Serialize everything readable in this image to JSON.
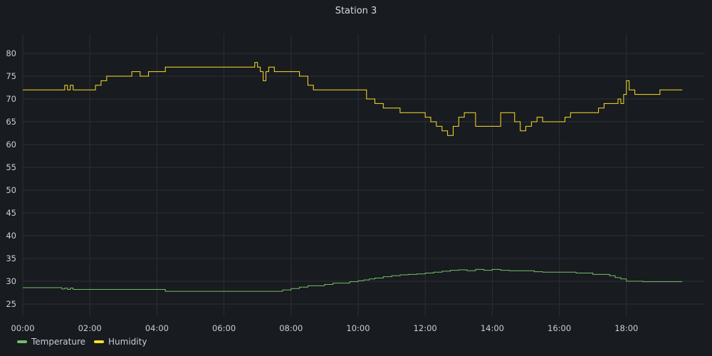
{
  "panel": {
    "title": "Station 3"
  },
  "chart_data": {
    "type": "line",
    "title": "Station 3",
    "xlabel": "",
    "ylabel": "",
    "x_ticks": [
      "00:00",
      "02:00",
      "04:00",
      "06:00",
      "08:00",
      "10:00",
      "12:00",
      "14:00",
      "16:00",
      "18:00"
    ],
    "xlim": [
      "00:00",
      "19:40"
    ],
    "ylim": [
      22,
      82
    ],
    "y_ticks": [
      25,
      30,
      35,
      40,
      45,
      50,
      55,
      60,
      65,
      70,
      75,
      80
    ],
    "grid": true,
    "legend": "bottom-left",
    "series": [
      {
        "name": "Temperature",
        "color": "#73bf69",
        "x": [
          "00:00",
          "00:30",
          "01:00",
          "01:10",
          "01:15",
          "01:20",
          "01:25",
          "01:30",
          "01:40",
          "02:00",
          "03:00",
          "04:00",
          "04:15",
          "05:00",
          "06:00",
          "07:00",
          "07:30",
          "07:45",
          "08:00",
          "08:15",
          "08:30",
          "08:45",
          "09:00",
          "09:15",
          "09:30",
          "09:45",
          "10:00",
          "10:10",
          "10:20",
          "10:30",
          "10:45",
          "11:00",
          "11:15",
          "11:30",
          "11:45",
          "12:00",
          "12:15",
          "12:30",
          "12:45",
          "13:00",
          "13:15",
          "13:30",
          "13:45",
          "14:00",
          "14:15",
          "14:30",
          "14:45",
          "15:00",
          "15:15",
          "15:30",
          "16:00",
          "16:30",
          "17:00",
          "17:30",
          "17:40",
          "17:50",
          "18:00",
          "18:30",
          "19:00",
          "19:30"
        ],
        "values": [
          28.6,
          28.6,
          28.6,
          28.3,
          28.5,
          28.2,
          28.5,
          28.2,
          28.2,
          28.2,
          28.2,
          28.2,
          27.8,
          27.8,
          27.8,
          27.8,
          27.8,
          28.1,
          28.4,
          28.7,
          29.0,
          29.0,
          29.3,
          29.6,
          29.6,
          29.9,
          30.1,
          30.3,
          30.5,
          30.7,
          31.0,
          31.2,
          31.4,
          31.5,
          31.6,
          31.8,
          32.0,
          32.2,
          32.4,
          32.5,
          32.3,
          32.6,
          32.4,
          32.6,
          32.4,
          32.3,
          32.3,
          32.3,
          32.1,
          32.0,
          32.0,
          31.8,
          31.5,
          31.2,
          30.8,
          30.5,
          30.0,
          29.9,
          29.9,
          29.9
        ]
      },
      {
        "name": "Humidity",
        "color": "#fade2a",
        "x": [
          "00:00",
          "01:00",
          "01:15",
          "01:20",
          "01:25",
          "01:30",
          "01:45",
          "02:00",
          "02:10",
          "02:20",
          "02:30",
          "02:45",
          "03:00",
          "03:15",
          "03:30",
          "03:45",
          "04:00",
          "04:15",
          "04:30",
          "05:00",
          "05:30",
          "06:00",
          "06:15",
          "06:30",
          "06:45",
          "06:55",
          "07:00",
          "07:05",
          "07:10",
          "07:15",
          "07:20",
          "07:30",
          "07:45",
          "08:00",
          "08:15",
          "08:30",
          "08:40",
          "08:50",
          "09:00",
          "09:30",
          "10:00",
          "10:15",
          "10:30",
          "10:45",
          "11:00",
          "11:15",
          "11:30",
          "11:45",
          "12:00",
          "12:10",
          "12:20",
          "12:30",
          "12:40",
          "12:50",
          "13:00",
          "13:10",
          "13:20",
          "13:30",
          "13:45",
          "14:00",
          "14:15",
          "14:30",
          "14:40",
          "14:50",
          "15:00",
          "15:10",
          "15:20",
          "15:30",
          "15:45",
          "16:00",
          "16:10",
          "16:20",
          "16:30",
          "16:45",
          "17:00",
          "17:10",
          "17:20",
          "17:30",
          "17:40",
          "17:45",
          "17:50",
          "17:55",
          "18:00",
          "18:05",
          "18:15",
          "18:30",
          "18:45",
          "19:00",
          "19:30"
        ],
        "values": [
          72,
          72,
          73,
          72,
          73,
          72,
          72,
          72,
          73,
          74,
          75,
          75,
          75,
          76,
          75,
          76,
          76,
          77,
          77,
          77,
          77,
          77,
          77,
          77,
          77,
          78,
          77,
          76,
          74,
          76,
          77,
          76,
          76,
          76,
          75,
          73,
          72,
          72,
          72,
          72,
          72,
          70,
          69,
          68,
          68,
          67,
          67,
          67,
          66,
          65,
          64,
          63,
          62,
          64,
          66,
          67,
          67,
          64,
          64,
          64,
          67,
          67,
          65,
          63,
          64,
          65,
          66,
          65,
          65,
          65,
          66,
          67,
          67,
          67,
          67,
          68,
          69,
          69,
          69,
          70,
          69,
          71,
          74,
          72,
          71,
          71,
          71,
          72,
          72
        ]
      }
    ]
  }
}
